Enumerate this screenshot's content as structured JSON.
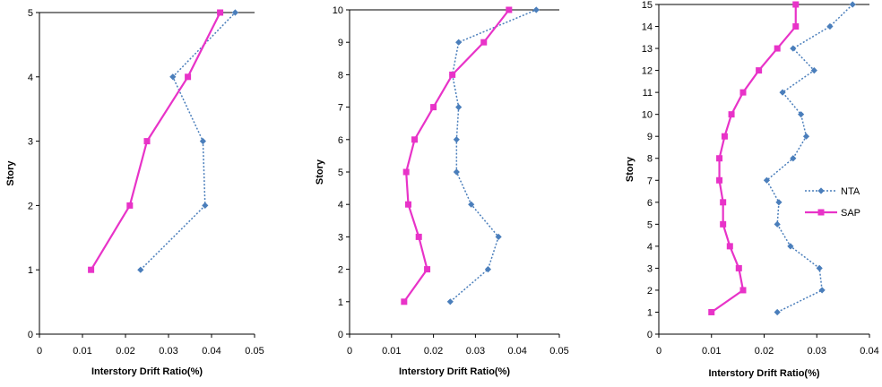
{
  "chart_data": [
    {
      "type": "line",
      "xlabel": "Interstory Drift Ratio(%)",
      "ylabel": "Story",
      "xlim": [
        0,
        0.05
      ],
      "ylim": [
        0,
        5
      ],
      "x_ticks": [
        "0",
        "0.01",
        "0.02",
        "0.03",
        "0.04",
        "0.05"
      ],
      "y_ticks": [
        "0",
        "1",
        "2",
        "3",
        "4",
        "5"
      ],
      "grid": false,
      "legend": null,
      "series": [
        {
          "key": "NTA",
          "style": "dotted-diamond",
          "color": "#4a7ebb",
          "points": [
            [
              0.0235,
              1
            ],
            [
              0.0385,
              2
            ],
            [
              0.038,
              3
            ],
            [
              0.031,
              4
            ],
            [
              0.0455,
              5
            ]
          ]
        },
        {
          "key": "SAP",
          "style": "solid-square",
          "color": "#e833c8",
          "points": [
            [
              0.012,
              1
            ],
            [
              0.021,
              2
            ],
            [
              0.025,
              3
            ],
            [
              0.0345,
              4
            ],
            [
              0.042,
              5
            ]
          ]
        }
      ]
    },
    {
      "type": "line",
      "xlabel": "Interstory Drift Ratio(%)",
      "ylabel": "Story",
      "xlim": [
        0,
        0.05
      ],
      "ylim": [
        0,
        10
      ],
      "x_ticks": [
        "0",
        "0.01",
        "0.02",
        "0.03",
        "0.04",
        "0.05"
      ],
      "y_ticks": [
        "0",
        "1",
        "2",
        "3",
        "4",
        "5",
        "6",
        "7",
        "8",
        "9",
        "10"
      ],
      "grid": false,
      "legend": null,
      "series": [
        {
          "key": "NTA",
          "style": "dotted-diamond",
          "color": "#4a7ebb",
          "points": [
            [
              0.024,
              1
            ],
            [
              0.033,
              2
            ],
            [
              0.0355,
              3
            ],
            [
              0.029,
              4
            ],
            [
              0.0255,
              5
            ],
            [
              0.0255,
              6
            ],
            [
              0.026,
              7
            ],
            [
              0.0245,
              8
            ],
            [
              0.026,
              9
            ],
            [
              0.0445,
              10
            ]
          ]
        },
        {
          "key": "SAP",
          "style": "solid-square",
          "color": "#e833c8",
          "points": [
            [
              0.013,
              1
            ],
            [
              0.0185,
              2
            ],
            [
              0.0165,
              3
            ],
            [
              0.014,
              4
            ],
            [
              0.0135,
              5
            ],
            [
              0.0155,
              6
            ],
            [
              0.02,
              7
            ],
            [
              0.0245,
              8
            ],
            [
              0.032,
              9
            ],
            [
              0.038,
              10
            ]
          ]
        }
      ]
    },
    {
      "type": "line",
      "xlabel": "Interstory Drift Ratio(%)",
      "ylabel": "Story",
      "xlim": [
        0,
        0.04
      ],
      "ylim": [
        0,
        15
      ],
      "x_ticks": [
        "0",
        "0.01",
        "0.02",
        "0.03",
        "0.04"
      ],
      "y_ticks": [
        "0",
        "1",
        "2",
        "3",
        "4",
        "5",
        "6",
        "7",
        "8",
        "9",
        "10",
        "11",
        "12",
        "13",
        "14",
        "15"
      ],
      "grid": false,
      "legend": "right",
      "series": [
        {
          "name": "NTA",
          "style": "dotted-diamond",
          "color": "#4a7ebb",
          "points": [
            [
              0.0225,
              1
            ],
            [
              0.031,
              2
            ],
            [
              0.0305,
              3
            ],
            [
              0.025,
              4
            ],
            [
              0.0225,
              5
            ],
            [
              0.0228,
              6
            ],
            [
              0.0205,
              7
            ],
            [
              0.0255,
              8
            ],
            [
              0.028,
              9
            ],
            [
              0.027,
              10
            ],
            [
              0.0235,
              11
            ],
            [
              0.0295,
              12
            ],
            [
              0.0255,
              13
            ],
            [
              0.0325,
              14
            ],
            [
              0.0368,
              15
            ]
          ]
        },
        {
          "name": "SAP",
          "style": "solid-square",
          "color": "#e833c8",
          "points": [
            [
              0.01,
              1
            ],
            [
              0.016,
              2
            ],
            [
              0.0152,
              3
            ],
            [
              0.0135,
              4
            ],
            [
              0.0122,
              5
            ],
            [
              0.0122,
              6
            ],
            [
              0.0115,
              7
            ],
            [
              0.0115,
              8
            ],
            [
              0.0125,
              9
            ],
            [
              0.0138,
              10
            ],
            [
              0.016,
              11
            ],
            [
              0.019,
              12
            ],
            [
              0.0225,
              13
            ],
            [
              0.026,
              14
            ],
            [
              0.026,
              15
            ]
          ]
        }
      ]
    }
  ]
}
